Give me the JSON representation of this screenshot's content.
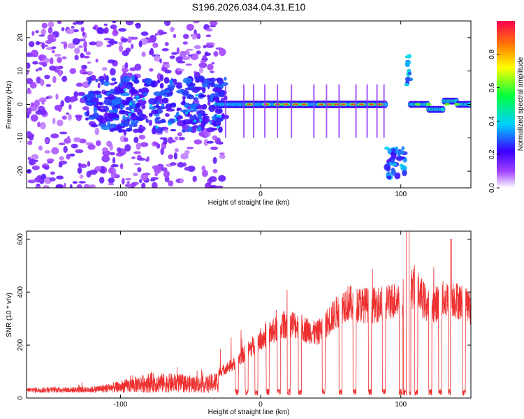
{
  "figure_title": "S196.2026.034.04.31.E10",
  "colors": {
    "snr_line": "#ee3030",
    "frame": "#000000",
    "colormap": [
      "#ffffff",
      "#a040ff",
      "#3a00ff",
      "#00d0ff",
      "#00ff40",
      "#ffff00",
      "#ff8000",
      "#ff0040"
    ]
  },
  "chart_data": [
    {
      "type": "heatmap",
      "title": "",
      "xlabel": "Height of straight line (km)",
      "ylabel": "Frequency (Hz)",
      "xlim": [
        -167,
        150
      ],
      "ylim": [
        -25,
        25
      ],
      "xticks": [
        -100,
        0,
        100
      ],
      "yticks": [
        -20,
        -10,
        0,
        10,
        20
      ],
      "colorbar": {
        "label": "Normalized spectral amplitude",
        "range": [
          0,
          1
        ],
        "ticks": [
          0.0,
          0.2,
          0.4,
          0.6,
          0.8
        ]
      },
      "features": [
        {
          "name": "noise_region",
          "x_range": [
            -167,
            -30
          ],
          "y_range": [
            -25,
            25
          ],
          "level": "low"
        },
        {
          "name": "main_band",
          "x_range": [
            -30,
            90
          ],
          "y_center": 0,
          "level": "high"
        },
        {
          "name": "down_chirp",
          "x_range": [
            90,
            103
          ],
          "y_center": -16,
          "level": "medium"
        },
        {
          "name": "up_burst",
          "x_range": [
            103,
            108
          ],
          "y_center": 9,
          "level": "medium"
        },
        {
          "name": "late_band",
          "x_range": [
            107,
            150
          ],
          "y_center": 0,
          "level": "high"
        }
      ]
    },
    {
      "type": "line",
      "title": "",
      "xlabel": "Height of straight line (km)",
      "ylabel": "SNR (10 * v/v)",
      "xlim": [
        -167,
        150
      ],
      "ylim": [
        0,
        630
      ],
      "xticks": [
        -100,
        0,
        100
      ],
      "yticks": [
        0,
        200,
        400,
        600
      ],
      "series": [
        {
          "name": "SNR",
          "x_range": [
            -167,
            150
          ],
          "baseline": 20,
          "envelope_x": [
            -167,
            -120,
            -100,
            -80,
            -60,
            -40,
            -20,
            0,
            20,
            40,
            60,
            80,
            100,
            110,
            120,
            135,
            150
          ],
          "envelope_y": [
            25,
            30,
            55,
            95,
            90,
            75,
            140,
            250,
            320,
            270,
            400,
            390,
            420,
            470,
            380,
            430,
            380
          ],
          "dips_x": [
            -17,
            -10,
            -3,
            5,
            13,
            20,
            28,
            45,
            57,
            67,
            78,
            88,
            100,
            103,
            106,
            111,
            121,
            128,
            135,
            145
          ]
        }
      ]
    }
  ]
}
